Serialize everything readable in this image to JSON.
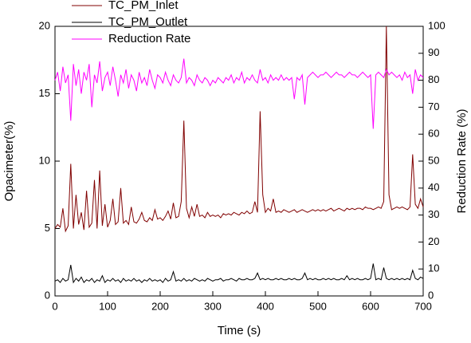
{
  "chart_data": {
    "type": "line",
    "x_label": "Time (s)",
    "y_label": "Opacimeter(%)",
    "y2_label": "Reduction Rate (%)",
    "x": [
      0,
      5,
      10,
      15,
      20,
      25,
      30,
      35,
      40,
      45,
      50,
      55,
      60,
      65,
      70,
      75,
      80,
      85,
      90,
      95,
      100,
      105,
      110,
      115,
      120,
      125,
      130,
      135,
      140,
      145,
      150,
      155,
      160,
      165,
      170,
      175,
      180,
      185,
      190,
      195,
      200,
      205,
      210,
      215,
      220,
      225,
      230,
      235,
      240,
      245,
      250,
      255,
      260,
      265,
      270,
      275,
      280,
      285,
      290,
      295,
      300,
      305,
      310,
      315,
      320,
      325,
      330,
      335,
      340,
      345,
      350,
      355,
      360,
      365,
      370,
      375,
      380,
      385,
      390,
      395,
      400,
      405,
      410,
      415,
      420,
      425,
      430,
      435,
      440,
      445,
      450,
      455,
      460,
      465,
      470,
      475,
      480,
      485,
      490,
      495,
      500,
      505,
      510,
      515,
      520,
      525,
      530,
      535,
      540,
      545,
      550,
      555,
      560,
      565,
      570,
      575,
      580,
      585,
      590,
      595,
      600,
      605,
      610,
      615,
      620,
      625,
      630,
      635,
      640,
      645,
      650,
      655,
      660,
      665,
      670,
      675,
      680,
      685,
      690,
      695,
      700
    ],
    "series": [
      {
        "name": "TC_PM_Inlet",
        "color": "#800000",
        "axis": "y",
        "values": [
          5.0,
          5.3,
          5.1,
          6.5,
          4.8,
          5.2,
          9.8,
          5.0,
          7.5,
          5.3,
          6.2,
          4.9,
          7.8,
          5.1,
          5.4,
          8.6,
          5.0,
          9.3,
          5.2,
          6.8,
          5.1,
          5.6,
          7.2,
          5.3,
          5.5,
          8.0,
          5.4,
          5.6,
          5.3,
          6.6,
          5.5,
          5.4,
          5.7,
          6.2,
          5.6,
          5.5,
          5.8,
          5.6,
          6.4,
          5.7,
          5.8,
          5.6,
          5.9,
          6.3,
          5.7,
          6.9,
          5.8,
          5.9,
          7.0,
          13.0,
          6.5,
          5.8,
          6.6,
          5.9,
          6.8,
          5.9,
          6.0,
          5.8,
          6.2,
          5.9,
          6.0,
          5.9,
          6.0,
          5.8,
          6.1,
          6.0,
          6.1,
          6.0,
          6.2,
          6.1,
          6.0,
          6.2,
          6.1,
          6.3,
          6.1,
          6.2,
          7.0,
          6.2,
          13.7,
          7.5,
          6.2,
          6.5,
          6.3,
          7.2,
          6.2,
          6.3,
          6.2,
          6.4,
          6.3,
          6.2,
          6.3,
          6.4,
          6.2,
          6.3,
          6.4,
          6.3,
          6.2,
          6.3,
          6.4,
          6.3,
          6.4,
          6.3,
          6.4,
          6.3,
          6.4,
          6.5,
          6.3,
          6.4,
          6.5,
          6.4,
          6.3,
          6.5,
          6.4,
          6.5,
          6.4,
          6.5,
          6.5,
          6.4,
          6.6,
          6.5,
          6.5,
          6.4,
          6.5,
          6.6,
          6.5,
          7.0,
          20.0,
          7.5,
          6.4,
          6.5,
          6.6,
          6.5,
          6.6,
          6.5,
          6.4,
          6.6,
          10.5,
          6.8,
          6.5,
          7.2,
          6.6
        ]
      },
      {
        "name": "TC_PM_Outlet",
        "color": "#000000",
        "axis": "y",
        "values": [
          1.1,
          1.2,
          1.0,
          1.3,
          1.1,
          1.2,
          2.3,
          1.0,
          1.3,
          1.1,
          1.4,
          1.0,
          1.2,
          1.1,
          1.3,
          1.0,
          1.2,
          1.1,
          1.5,
          1.0,
          1.2,
          1.1,
          1.3,
          1.1,
          1.2,
          1.0,
          1.3,
          1.1,
          1.2,
          1.1,
          1.3,
          1.1,
          1.2,
          1.0,
          1.2,
          1.1,
          1.3,
          1.1,
          1.2,
          1.1,
          1.2,
          1.0,
          1.3,
          1.1,
          1.2,
          1.8,
          1.1,
          1.2,
          1.1,
          1.3,
          1.1,
          1.2,
          1.1,
          1.3,
          1.2,
          1.1,
          1.2,
          1.1,
          1.3,
          1.2,
          1.1,
          1.2,
          1.2,
          1.3,
          1.1,
          1.2,
          1.2,
          1.3,
          1.2,
          1.1,
          1.3,
          1.2,
          1.2,
          1.3,
          1.2,
          1.2,
          1.3,
          1.7,
          1.2,
          1.3,
          1.2,
          1.3,
          1.2,
          1.2,
          1.3,
          1.2,
          1.3,
          1.2,
          1.2,
          1.3,
          1.2,
          1.3,
          1.2,
          1.2,
          1.3,
          1.7,
          1.2,
          1.3,
          1.2,
          1.3,
          1.2,
          1.2,
          1.3,
          1.2,
          1.3,
          1.2,
          1.3,
          1.2,
          1.2,
          1.3,
          1.2,
          1.5,
          1.2,
          1.3,
          1.2,
          1.3,
          1.2,
          1.2,
          1.3,
          1.2,
          1.3,
          2.4,
          1.2,
          1.3,
          1.2,
          2.1,
          1.3,
          1.2,
          1.3,
          1.2,
          1.3,
          1.2,
          1.3,
          1.2,
          1.3,
          1.2,
          1.9,
          1.3,
          1.2,
          1.4,
          1.3
        ]
      },
      {
        "name": "Reduction Rate",
        "color": "#ff00ff",
        "axis": "y2",
        "values": [
          80,
          83,
          76,
          85,
          79,
          82,
          65,
          86,
          78,
          84,
          75,
          83,
          80,
          86,
          70,
          82,
          79,
          87,
          76,
          81,
          83,
          78,
          85,
          80,
          74,
          82,
          79,
          84,
          77,
          82,
          80,
          76,
          83,
          79,
          81,
          78,
          84,
          80,
          77,
          82,
          81,
          79,
          83,
          80,
          78,
          82,
          80,
          79,
          81,
          88,
          79,
          81,
          80,
          78,
          82,
          80,
          79,
          81,
          80,
          78,
          80,
          79,
          81,
          80,
          79,
          81,
          80,
          82,
          79,
          81,
          80,
          83,
          79,
          81,
          80,
          82,
          80,
          79,
          84,
          80,
          81,
          79,
          82,
          80,
          81,
          80,
          82,
          80,
          81,
          80,
          81,
          73,
          81,
          80,
          82,
          71,
          81,
          82,
          83,
          82,
          81,
          82,
          82,
          83,
          82,
          81,
          82,
          83,
          82,
          82,
          81,
          82,
          83,
          82,
          82,
          81,
          82,
          83,
          82,
          81,
          82,
          62,
          82,
          83,
          82,
          81,
          84,
          82,
          83,
          82,
          81,
          82,
          80,
          83,
          81,
          82,
          75,
          84,
          80,
          82,
          81
        ]
      }
    ],
    "xlim": [
      0,
      700
    ],
    "xticks": [
      0,
      100,
      200,
      300,
      400,
      500,
      600,
      700
    ],
    "ylim": [
      0,
      20
    ],
    "yticks": [
      0,
      5,
      10,
      15,
      20
    ],
    "y2lim": [
      0,
      100
    ],
    "y2ticks": [
      0,
      10,
      20,
      30,
      40,
      50,
      60,
      70,
      80,
      90,
      100
    ]
  }
}
